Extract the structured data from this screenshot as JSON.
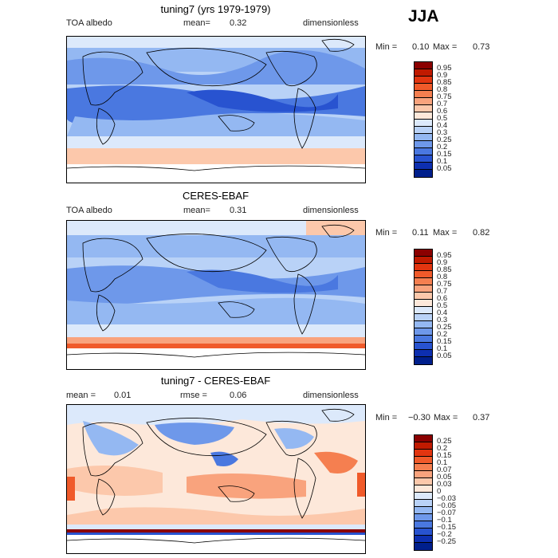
{
  "season": "JJA",
  "panels": [
    {
      "title": "tuning7 (yrs 1979-1979)",
      "left_label": "TOA albedo",
      "mean_label": "mean=",
      "mean_value": "0.32",
      "units": "dimensionless",
      "min_label": "Min =",
      "min_value": "0.10",
      "max_label": "Max =",
      "max_value": "0.73",
      "colorbar": {
        "labels": [
          "0.95",
          "0.9",
          "0.85",
          "0.8",
          "0.75",
          "0.7",
          "0.6",
          "0.5",
          "0.4",
          "0.3",
          "0.25",
          "0.2",
          "0.15",
          "0.1",
          "0.05"
        ],
        "colors": [
          "#8b0000",
          "#c01a00",
          "#e23510",
          "#f05a2a",
          "#f57f50",
          "#f9a37d",
          "#fcc8ab",
          "#fde8da",
          "#dce9fb",
          "#b9d2f7",
          "#94b8f2",
          "#6e98ea",
          "#4a78e0",
          "#2853d0",
          "#0d2fb0",
          "#001f8c"
        ]
      }
    },
    {
      "title": "CERES-EBAF",
      "left_label": "TOA albedo",
      "mean_label": "mean=",
      "mean_value": "0.31",
      "units": "dimensionless",
      "min_label": "Min =",
      "min_value": "0.11",
      "max_label": "Max =",
      "max_value": "0.82",
      "colorbar": {
        "labels": [
          "0.95",
          "0.9",
          "0.85",
          "0.8",
          "0.75",
          "0.7",
          "0.6",
          "0.5",
          "0.4",
          "0.3",
          "0.25",
          "0.2",
          "0.15",
          "0.1",
          "0.05"
        ],
        "colors": [
          "#8b0000",
          "#c01a00",
          "#e23510",
          "#f05a2a",
          "#f57f50",
          "#f9a37d",
          "#fcc8ab",
          "#fde8da",
          "#dce9fb",
          "#b9d2f7",
          "#94b8f2",
          "#6e98ea",
          "#4a78e0",
          "#2853d0",
          "#0d2fb0",
          "#001f8c"
        ]
      }
    },
    {
      "title": "tuning7 - CERES-EBAF",
      "left_label": "mean =",
      "left_value": "0.01",
      "mean_label": "rmse =",
      "mean_value": "0.06",
      "units": "dimensionless",
      "min_label": "Min =",
      "min_value": "−0.30",
      "max_label": "Max =",
      "max_value": "0.37",
      "colorbar": {
        "labels": [
          "0.25",
          "0.2",
          "0.15",
          "0.1",
          "0.07",
          "0.05",
          "0.03",
          "0",
          "−0.03",
          "−0.05",
          "−0.07",
          "−0.1",
          "−0.15",
          "−0.2",
          "−0.25"
        ],
        "colors": [
          "#8b0000",
          "#c01a00",
          "#e23510",
          "#f05a2a",
          "#f57f50",
          "#f9a37d",
          "#fcc8ab",
          "#fde8da",
          "#dce9fb",
          "#b9d2f7",
          "#94b8f2",
          "#6e98ea",
          "#4a78e0",
          "#2853d0",
          "#0d2fb0",
          "#001f8c"
        ]
      }
    }
  ]
}
